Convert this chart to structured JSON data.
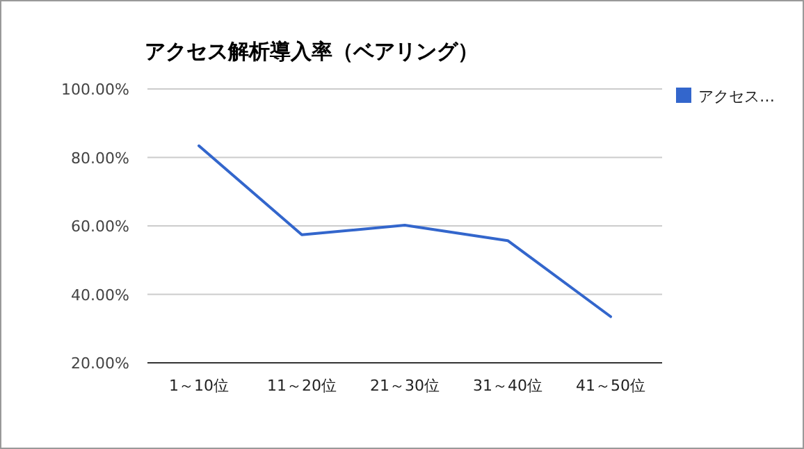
{
  "chart_data": {
    "type": "line",
    "title": "アクセス解析導入率（ベアリング）",
    "categories": [
      "1～10位",
      "11～20位",
      "21～30位",
      "31～40位",
      "41～50位"
    ],
    "series": [
      {
        "name": "アクセス…",
        "color": "#3366cc",
        "values": [
          83.4,
          57.4,
          60.2,
          55.7,
          33.5
        ]
      }
    ],
    "ylim": [
      20,
      100
    ],
    "yticks": [
      {
        "value": 20,
        "label": "20.00%"
      },
      {
        "value": 40,
        "label": "40.00%"
      },
      {
        "value": 60,
        "label": "60.00%"
      },
      {
        "value": 80,
        "label": "80.00%"
      },
      {
        "value": 100,
        "label": "100.00%"
      }
    ],
    "grid": "y",
    "legend": "right",
    "marker": "none"
  }
}
